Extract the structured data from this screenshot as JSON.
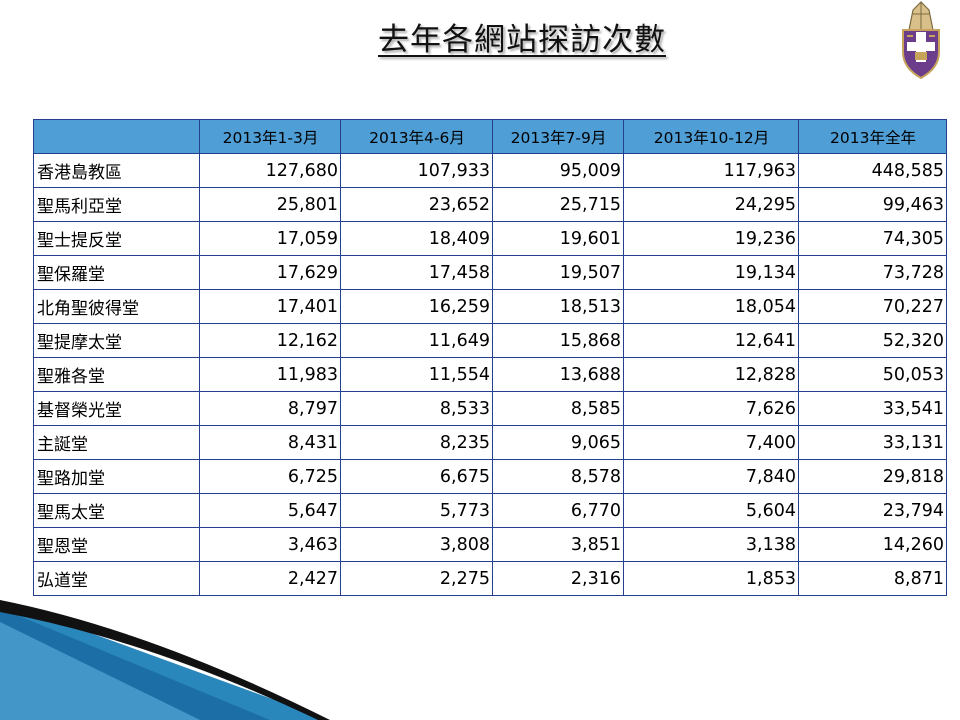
{
  "title": "去年各網站探訪次數",
  "colors": {
    "header_bg": "#4f9fd6",
    "border": "#24408e",
    "crest_shield": "#6b3d8a",
    "crest_mitre": "#c8a45a",
    "swoosh_dark": "#111111",
    "swoosh_blue": "#2a87bb"
  },
  "icons": {
    "crest": "diocese-crest-icon"
  },
  "table": {
    "headers": [
      "",
      "2013年1-3月",
      "2013年4-6月",
      "2013年7-9月",
      "2013年10-12月",
      "2013年全年"
    ],
    "rows": [
      {
        "name": "香港島教區",
        "values": [
          "127,680",
          "107,933",
          "95,009",
          "117,963",
          "448,585"
        ]
      },
      {
        "name": "聖馬利亞堂",
        "values": [
          "25,801",
          "23,652",
          "25,715",
          "24,295",
          "99,463"
        ]
      },
      {
        "name": "聖士提反堂",
        "values": [
          "17,059",
          "18,409",
          "19,601",
          "19,236",
          "74,305"
        ]
      },
      {
        "name": "聖保羅堂",
        "values": [
          "17,629",
          "17,458",
          "19,507",
          "19,134",
          "73,728"
        ]
      },
      {
        "name": "北角聖彼得堂",
        "values": [
          "17,401",
          "16,259",
          "18,513",
          "18,054",
          "70,227"
        ]
      },
      {
        "name": "聖提摩太堂",
        "values": [
          "12,162",
          "11,649",
          "15,868",
          "12,641",
          "52,320"
        ]
      },
      {
        "name": "聖雅各堂",
        "values": [
          "11,983",
          "11,554",
          "13,688",
          "12,828",
          "50,053"
        ]
      },
      {
        "name": "基督榮光堂",
        "values": [
          "8,797",
          "8,533",
          "8,585",
          "7,626",
          "33,541"
        ]
      },
      {
        "name": "主誕堂",
        "values": [
          "8,431",
          "8,235",
          "9,065",
          "7,400",
          "33,131"
        ]
      },
      {
        "name": "聖路加堂",
        "values": [
          "6,725",
          "6,675",
          "8,578",
          "7,840",
          "29,818"
        ]
      },
      {
        "name": "聖馬太堂",
        "values": [
          "5,647",
          "5,773",
          "6,770",
          "5,604",
          "23,794"
        ]
      },
      {
        "name": "聖恩堂",
        "values": [
          "3,463",
          "3,808",
          "3,851",
          "3,138",
          "14,260"
        ]
      },
      {
        "name": "弘道堂",
        "values": [
          "2,427",
          "2,275",
          "2,316",
          "1,853",
          "8,871"
        ]
      }
    ]
  }
}
